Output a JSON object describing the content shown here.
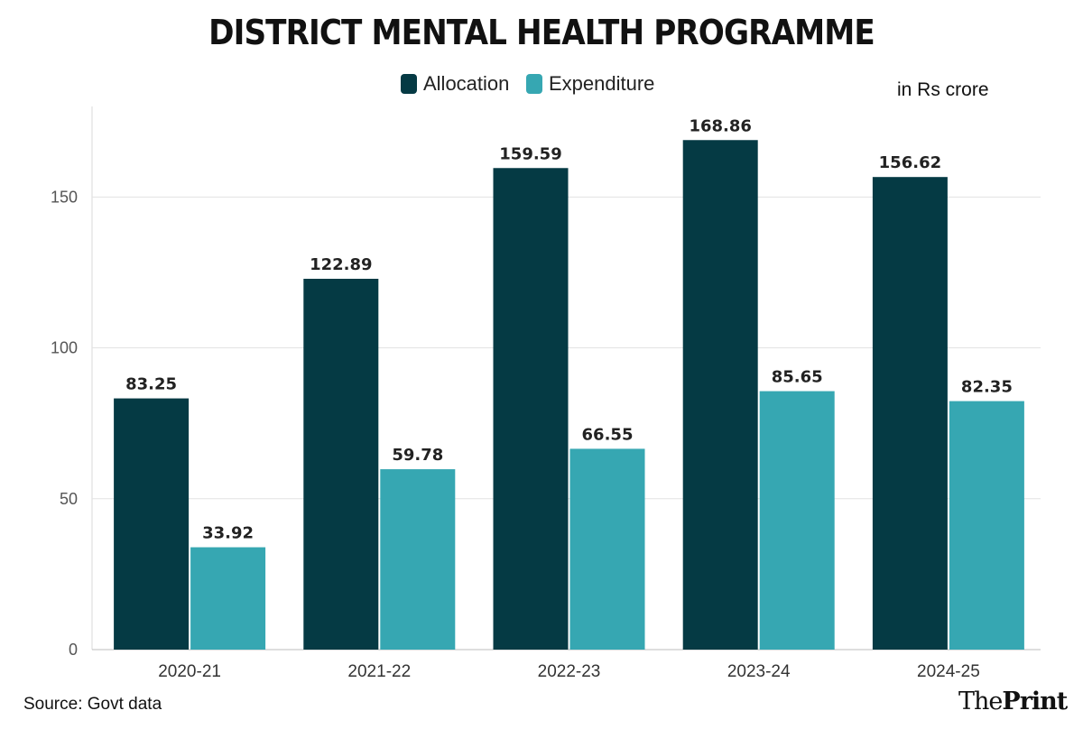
{
  "chart_data": {
    "type": "bar",
    "title": "DISTRICT MENTAL HEALTH PROGRAMME",
    "unit_note": "in Rs crore",
    "categories": [
      "2020-21",
      "2021-22",
      "2022-23",
      "2023-24",
      "2024-25"
    ],
    "series": [
      {
        "name": "Allocation",
        "color": "#053a44",
        "values": [
          83.25,
          122.89,
          159.59,
          168.86,
          156.62
        ],
        "labels": [
          "83.25",
          "122.89",
          "159.59",
          "168.86",
          "156.62"
        ]
      },
      {
        "name": "Expenditure",
        "color": "#36a7b2",
        "values": [
          33.92,
          59.78,
          66.55,
          85.65,
          82.35
        ],
        "labels": [
          "33.92",
          "59.78",
          "66.55",
          "85.65",
          "82.35"
        ]
      }
    ],
    "yticks": [
      0,
      50,
      100,
      150
    ],
    "ytick_labels": [
      "0",
      "50",
      "100",
      "150"
    ],
    "ylim": [
      0,
      180
    ],
    "xlabel": "",
    "ylabel": "",
    "grid": true,
    "legend": "top-center"
  },
  "source": "Source: Govt data",
  "brand": {
    "part1": "The",
    "part2": "Print"
  }
}
